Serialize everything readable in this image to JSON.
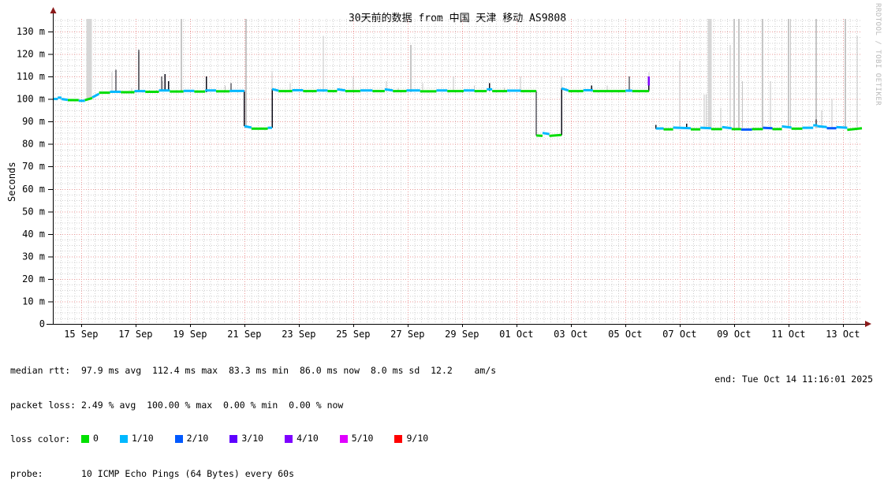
{
  "title": "30天前的数据 from 中国 天津 移动 AS9808",
  "watermark": "RRDTOOL / TOBI OETIKER",
  "chart_data": {
    "type": "line",
    "title": "30天前的数据 from 中国 天津 移动 AS9808",
    "ylabel": "Seconds",
    "y_unit": "ms (shown as m)",
    "x_range_days": [
      0,
      29.74
    ],
    "y_range_ms": [
      0,
      135.6
    ],
    "grid": "red dotted major, gray dotted minor",
    "y_ticks": [
      {
        "v": 0,
        "label": "0"
      },
      {
        "v": 10,
        "label": "10 m"
      },
      {
        "v": 20,
        "label": "20 m"
      },
      {
        "v": 30,
        "label": "30 m"
      },
      {
        "v": 40,
        "label": "40 m"
      },
      {
        "v": 50,
        "label": "50 m"
      },
      {
        "v": 60,
        "label": "60 m"
      },
      {
        "v": 70,
        "label": "70 m"
      },
      {
        "v": 80,
        "label": "80 m"
      },
      {
        "v": 90,
        "label": "90 m"
      },
      {
        "v": 100,
        "label": "100 m"
      },
      {
        "v": 110,
        "label": "110 m"
      },
      {
        "v": 120,
        "label": "120 m"
      },
      {
        "v": 130,
        "label": "130 m"
      }
    ],
    "x_ticks": [
      {
        "d": 1.04,
        "label": "15 Sep"
      },
      {
        "d": 3.04,
        "label": "17 Sep"
      },
      {
        "d": 5.04,
        "label": "19 Sep"
      },
      {
        "d": 7.04,
        "label": "21 Sep"
      },
      {
        "d": 9.04,
        "label": "23 Sep"
      },
      {
        "d": 11.04,
        "label": "25 Sep"
      },
      {
        "d": 13.04,
        "label": "27 Sep"
      },
      {
        "d": 15.04,
        "label": "29 Sep"
      },
      {
        "d": 17.04,
        "label": "01 Oct"
      },
      {
        "d": 19.04,
        "label": "03 Oct"
      },
      {
        "d": 21.04,
        "label": "05 Oct"
      },
      {
        "d": 23.04,
        "label": "07 Oct"
      },
      {
        "d": 25.04,
        "label": "09 Oct"
      },
      {
        "d": 27.04,
        "label": "11 Oct"
      },
      {
        "d": 29.04,
        "label": "13 Oct"
      }
    ],
    "median_segments": [
      [
        0,
        0.18,
        100,
        100,
        "c"
      ],
      [
        0.18,
        0.32,
        100.6,
        100.6,
        "c"
      ],
      [
        0.32,
        0.55,
        100,
        99.6,
        "c"
      ],
      [
        0.55,
        0.95,
        99.5,
        99.5,
        "g"
      ],
      [
        0.95,
        1.18,
        99.2,
        99.2,
        "c"
      ],
      [
        1.18,
        1.45,
        99.5,
        100.4,
        "g"
      ],
      [
        1.45,
        1.7,
        100.7,
        102.3,
        "c"
      ],
      [
        1.7,
        2.1,
        102.8,
        102.8,
        "g"
      ],
      [
        2.1,
        2.5,
        103.2,
        103.2,
        "c"
      ],
      [
        2.5,
        3.0,
        103,
        103,
        "g"
      ],
      [
        3.0,
        3.4,
        103.5,
        103.5,
        "c"
      ],
      [
        3.4,
        3.9,
        103.2,
        103.2,
        "g"
      ],
      [
        3.9,
        4.3,
        103.8,
        103.8,
        "c"
      ],
      [
        4.3,
        4.8,
        103.3,
        103.3,
        "g"
      ],
      [
        4.8,
        5.2,
        103.6,
        103.6,
        "c"
      ],
      [
        5.2,
        5.6,
        103.3,
        103.3,
        "g"
      ],
      [
        5.6,
        6.0,
        103.8,
        103.8,
        "c"
      ],
      [
        6.0,
        6.5,
        103.4,
        103.4,
        "g"
      ],
      [
        6.5,
        7.04,
        103.6,
        103.6,
        "c"
      ],
      [
        7.04,
        7.3,
        87.9,
        87.3,
        "c"
      ],
      [
        7.3,
        7.9,
        86.8,
        86.8,
        "g"
      ],
      [
        7.9,
        8.06,
        87.2,
        87.2,
        "c"
      ],
      [
        8.06,
        8.3,
        104.4,
        103.7,
        "c"
      ],
      [
        8.3,
        8.8,
        103.5,
        103.5,
        "g"
      ],
      [
        8.8,
        9.2,
        103.9,
        103.9,
        "c"
      ],
      [
        9.2,
        9.7,
        103.5,
        103.5,
        "g"
      ],
      [
        9.7,
        10.1,
        103.8,
        103.8,
        "c"
      ],
      [
        10.1,
        10.45,
        103.5,
        103.5,
        "g"
      ],
      [
        10.45,
        10.75,
        104.3,
        103.8,
        "c"
      ],
      [
        10.75,
        11.3,
        103.5,
        103.5,
        "g"
      ],
      [
        11.3,
        11.75,
        103.8,
        103.8,
        "c"
      ],
      [
        11.75,
        12.2,
        103.5,
        103.5,
        "g"
      ],
      [
        12.2,
        12.5,
        104.3,
        103.8,
        "c"
      ],
      [
        12.5,
        13.0,
        103.5,
        103.5,
        "g"
      ],
      [
        13.0,
        13.5,
        103.8,
        103.8,
        "c"
      ],
      [
        13.5,
        14.1,
        103.4,
        103.4,
        "g"
      ],
      [
        14.1,
        14.5,
        103.8,
        103.8,
        "c"
      ],
      [
        14.5,
        15.1,
        103.5,
        103.5,
        "g"
      ],
      [
        15.1,
        15.5,
        103.8,
        103.8,
        "c"
      ],
      [
        15.5,
        15.95,
        103.5,
        103.5,
        "g"
      ],
      [
        15.95,
        16.15,
        104.3,
        104.3,
        "c"
      ],
      [
        16.15,
        16.7,
        103.5,
        103.5,
        "g"
      ],
      [
        16.7,
        17.2,
        103.7,
        103.7,
        "c"
      ],
      [
        17.2,
        17.77,
        103.5,
        103.5,
        "g"
      ],
      [
        17.77,
        18.0,
        83.8,
        83.6,
        "g"
      ],
      [
        18.0,
        18.25,
        84.9,
        84.4,
        "c"
      ],
      [
        18.25,
        18.7,
        83.6,
        84.0,
        "g"
      ],
      [
        18.7,
        18.95,
        104.7,
        103.8,
        "c"
      ],
      [
        18.95,
        19.5,
        103.5,
        103.5,
        "g"
      ],
      [
        19.5,
        19.85,
        103.9,
        103.9,
        "c"
      ],
      [
        19.85,
        21.05,
        103.5,
        103.5,
        "g"
      ],
      [
        21.05,
        21.3,
        103.7,
        103.7,
        "c"
      ],
      [
        21.3,
        21.91,
        103.5,
        103.5,
        "g"
      ],
      [
        22.17,
        22.45,
        86.9,
        86.9,
        "c"
      ],
      [
        22.45,
        22.8,
        86.5,
        86.5,
        "g"
      ],
      [
        22.8,
        23.45,
        87.3,
        87.0,
        "c"
      ],
      [
        23.45,
        23.8,
        86.5,
        86.5,
        "g"
      ],
      [
        23.8,
        24.2,
        87.2,
        87.0,
        "c"
      ],
      [
        24.2,
        24.6,
        86.6,
        86.6,
        "g"
      ],
      [
        24.6,
        24.95,
        87.5,
        87.0,
        "c"
      ],
      [
        24.95,
        25.3,
        86.6,
        86.6,
        "g"
      ],
      [
        25.3,
        25.7,
        86.4,
        86.4,
        "b"
      ],
      [
        25.7,
        26.1,
        86.6,
        86.6,
        "g"
      ],
      [
        26.1,
        26.45,
        87.2,
        87.0,
        "b"
      ],
      [
        26.45,
        26.8,
        86.6,
        86.6,
        "g"
      ],
      [
        26.8,
        27.15,
        87.8,
        87.3,
        "c"
      ],
      [
        27.15,
        27.55,
        86.8,
        86.8,
        "g"
      ],
      [
        27.55,
        27.95,
        87.2,
        87.2,
        "c"
      ],
      [
        27.95,
        28.1,
        88.3,
        88.3,
        "c"
      ],
      [
        28.1,
        28.45,
        87.9,
        87.5,
        "c"
      ],
      [
        28.45,
        28.8,
        87.0,
        87.0,
        "b"
      ],
      [
        28.8,
        29.2,
        87.5,
        87.2,
        "c"
      ],
      [
        29.2,
        29.74,
        86.3,
        87.0,
        "g"
      ]
    ],
    "transitions": [
      [
        7.04,
        103.6,
        87.9
      ],
      [
        8.06,
        87.2,
        104.4
      ],
      [
        17.77,
        103.5,
        83.8
      ],
      [
        18.7,
        84.0,
        104.7
      ]
    ],
    "max_spikes": [
      [
        1.33,
        100,
        136,
        7
      ],
      [
        2.17,
        103,
        112,
        1
      ],
      [
        2.9,
        103,
        105,
        1
      ],
      [
        3.16,
        103,
        121,
        2
      ],
      [
        4.05,
        103.5,
        108,
        1
      ],
      [
        4.72,
        103,
        136,
        2
      ],
      [
        5.65,
        103,
        107,
        1
      ],
      [
        6.33,
        103,
        106,
        1
      ],
      [
        7.1,
        87,
        136,
        2
      ],
      [
        8.06,
        104,
        112,
        1
      ],
      [
        8.72,
        103,
        107,
        1
      ],
      [
        9.94,
        103,
        128,
        1
      ],
      [
        11.04,
        103,
        110,
        1
      ],
      [
        12.26,
        103,
        108,
        1
      ],
      [
        12.7,
        103,
        105,
        1
      ],
      [
        13.16,
        103,
        124,
        2
      ],
      [
        13.6,
        103,
        107,
        1
      ],
      [
        14.72,
        103,
        110,
        1
      ],
      [
        15.5,
        103,
        106,
        1
      ],
      [
        16.6,
        103,
        105,
        1
      ],
      [
        17.19,
        103,
        110,
        1
      ],
      [
        18.7,
        104,
        110,
        1
      ],
      [
        19.8,
        103,
        106,
        1
      ],
      [
        20.38,
        103,
        106,
        1
      ],
      [
        21.19,
        103,
        110,
        1
      ],
      [
        21.91,
        103,
        112,
        1
      ],
      [
        23.04,
        87,
        117,
        1
      ],
      [
        23.94,
        87,
        102,
        1
      ],
      [
        24.02,
        87,
        102,
        1
      ],
      [
        24.14,
        87,
        136,
        5
      ],
      [
        24.55,
        87,
        96,
        1
      ],
      [
        24.9,
        87,
        124,
        1
      ],
      [
        25.04,
        87,
        136,
        2
      ],
      [
        25.22,
        87,
        136,
        2
      ],
      [
        25.35,
        87,
        108,
        1
      ],
      [
        26.09,
        87,
        136,
        2
      ],
      [
        26.38,
        87,
        108,
        1
      ],
      [
        27.04,
        87,
        136,
        2
      ],
      [
        27.12,
        87,
        136,
        1
      ],
      [
        28.06,
        87,
        136,
        2
      ],
      [
        28.26,
        87,
        95,
        1
      ],
      [
        28.64,
        87,
        100,
        1
      ],
      [
        29.13,
        87,
        136,
        2
      ],
      [
        29.57,
        87,
        128,
        1
      ]
    ],
    "median_spikes": [
      [
        2.32,
        103,
        113
      ],
      [
        3.16,
        103,
        122
      ],
      [
        4.0,
        103.5,
        110
      ],
      [
        4.12,
        103.5,
        111
      ],
      [
        4.25,
        103.5,
        108
      ],
      [
        5.65,
        103,
        110
      ],
      [
        6.55,
        103.5,
        107
      ],
      [
        16.05,
        103.5,
        107
      ],
      [
        19.8,
        103.5,
        106
      ],
      [
        21.19,
        103.5,
        110
      ],
      [
        21.91,
        103.5,
        110
      ],
      [
        22.17,
        86.8,
        88.5
      ],
      [
        23.3,
        87,
        89
      ],
      [
        28.06,
        88,
        91
      ]
    ],
    "loss_marks": [
      [
        21.91,
        106,
        110,
        "p"
      ]
    ],
    "colors": {
      "g": "#00dd00",
      "c": "#00b8ff",
      "b": "#0059ff",
      "p": "#7e00ff",
      "spike_gray": "#c6c6c6",
      "spike_gray_wide": "#d6d6d6",
      "spike_dark": "#0d0d1a",
      "grid_major": "#ec9a9a",
      "grid_minor": "#cfcfcf",
      "axis": "#000000",
      "arrow": "#8b1a1a"
    }
  },
  "legend": {
    "median_line": "median rtt:  97.9 ms avg  112.4 ms max  83.3 ms min  86.0 ms now  8.0 ms sd  12.2    am/s",
    "loss_line": "packet loss: 2.49 % avg  100.00 % max  0.00 % min  0.00 % now",
    "loss_color_label": "loss color:  ",
    "loss_colors": [
      {
        "label": "0",
        "color": "#00e000"
      },
      {
        "label": "1/10",
        "color": "#00b8ff"
      },
      {
        "label": "2/10",
        "color": "#0059ff"
      },
      {
        "label": "3/10",
        "color": "#5e00ff"
      },
      {
        "label": "4/10",
        "color": "#7e00ff"
      },
      {
        "label": "5/10",
        "color": "#e000ff"
      },
      {
        "label": "9/10",
        "color": "#ff0000"
      }
    ],
    "probe_line": "probe:       10 ICMP Echo Pings (64 Bytes) every 60s",
    "end_text": "end: Tue Oct 14 11:16:01 2025"
  }
}
